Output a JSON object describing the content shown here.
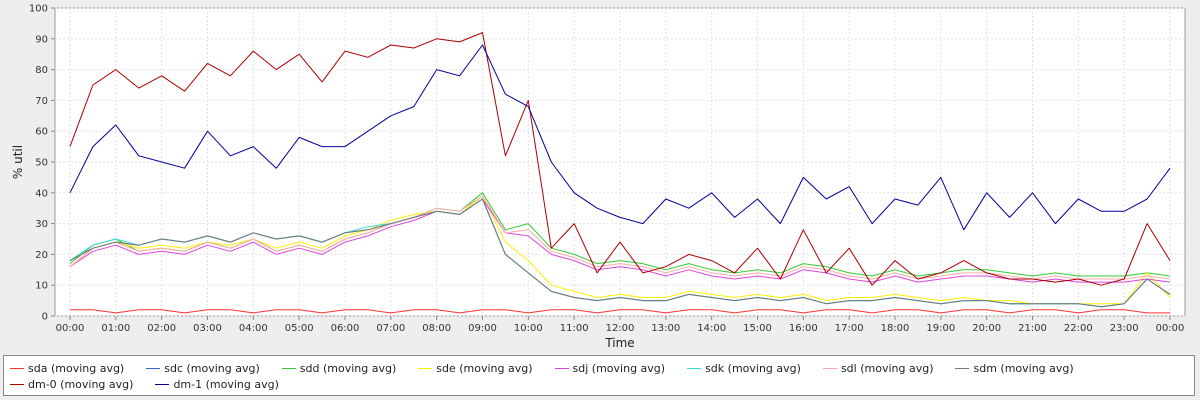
{
  "chart_data": {
    "type": "line",
    "title": "",
    "xlabel": "Time",
    "ylabel": "% util",
    "ylim": [
      0,
      100
    ],
    "yticks": [
      0,
      10,
      20,
      30,
      40,
      50,
      60,
      70,
      80,
      90,
      100
    ],
    "xticks": [
      "00:00",
      "01:00",
      "02:00",
      "03:00",
      "04:00",
      "05:00",
      "06:00",
      "07:00",
      "08:00",
      "09:00",
      "10:00",
      "11:00",
      "12:00",
      "13:00",
      "14:00",
      "15:00",
      "16:00",
      "17:00",
      "18:00",
      "19:00",
      "20:00",
      "21:00",
      "22:00",
      "23:00",
      "00:00"
    ],
    "grid": true,
    "legend_position": "bottom",
    "x_hours": [
      0,
      0.5,
      1,
      1.5,
      2,
      2.5,
      3,
      3.5,
      4,
      4.5,
      5,
      5.5,
      6,
      6.5,
      7,
      7.5,
      8,
      8.5,
      9,
      9.5,
      10,
      10.5,
      11,
      11.5,
      12,
      12.5,
      13,
      13.5,
      14,
      14.5,
      15,
      15.5,
      16,
      16.5,
      17,
      17.5,
      18,
      18.5,
      19,
      19.5,
      20,
      20.5,
      21,
      21.5,
      22,
      22.5,
      23,
      23.5,
      24
    ],
    "series": [
      {
        "name": "sda (moving avg)",
        "color": "#ff3333",
        "values": [
          2,
          2,
          1,
          2,
          2,
          1,
          2,
          2,
          1,
          2,
          2,
          1,
          2,
          2,
          1,
          2,
          2,
          1,
          2,
          2,
          1,
          2,
          2,
          1,
          2,
          2,
          1,
          2,
          2,
          1,
          2,
          2,
          1,
          2,
          2,
          1,
          2,
          2,
          1,
          2,
          2,
          1,
          2,
          2,
          1,
          2,
          2,
          1,
          1
        ]
      },
      {
        "name": "sdc (moving avg)",
        "color": "#3366cc",
        "values": [
          18,
          22,
          24,
          23,
          25,
          24,
          26,
          24,
          27,
          25,
          26,
          24,
          27,
          28,
          30,
          32,
          34,
          33,
          38,
          20,
          14,
          8,
          6,
          5,
          6,
          5,
          5,
          7,
          6,
          5,
          6,
          5,
          6,
          4,
          5,
          5,
          6,
          5,
          4,
          5,
          5,
          4,
          4,
          4,
          4,
          3,
          4,
          12,
          7
        ]
      },
      {
        "name": "sdd (moving avg)",
        "color": "#33cc33",
        "values": [
          17,
          23,
          25,
          21,
          22,
          21,
          24,
          22,
          25,
          21,
          23,
          21,
          25,
          27,
          30,
          32,
          35,
          34,
          40,
          28,
          30,
          22,
          20,
          17,
          18,
          17,
          15,
          17,
          15,
          14,
          15,
          14,
          17,
          16,
          14,
          13,
          15,
          13,
          14,
          15,
          15,
          14,
          13,
          14,
          13,
          13,
          13,
          14,
          13
        ]
      },
      {
        "name": "sde (moving avg)",
        "color": "#ffee00",
        "values": [
          16,
          22,
          24,
          22,
          23,
          22,
          24,
          23,
          25,
          22,
          24,
          22,
          26,
          28,
          31,
          33,
          34,
          33,
          39,
          24,
          18,
          10,
          8,
          6,
          7,
          6,
          6,
          8,
          7,
          6,
          7,
          6,
          7,
          5,
          6,
          6,
          7,
          6,
          5,
          6,
          5,
          5,
          4,
          4,
          4,
          4,
          4,
          14,
          6
        ]
      },
      {
        "name": "sdj (moving avg)",
        "color": "#dd44dd",
        "values": [
          16,
          21,
          23,
          20,
          21,
          20,
          23,
          21,
          24,
          20,
          22,
          20,
          24,
          26,
          29,
          31,
          34,
          33,
          38,
          27,
          26,
          20,
          18,
          15,
          16,
          15,
          13,
          15,
          13,
          12,
          13,
          12,
          15,
          14,
          12,
          11,
          13,
          11,
          12,
          13,
          13,
          12,
          11,
          12,
          11,
          11,
          11,
          12,
          11
        ]
      },
      {
        "name": "sdk (moving avg)",
        "color": "#33dddd",
        "values": [
          18,
          23,
          25,
          23,
          25,
          24,
          26,
          24,
          27,
          25,
          26,
          24,
          27,
          29,
          30,
          32,
          34,
          33,
          38,
          20,
          14,
          8,
          6,
          5,
          6,
          5,
          5,
          7,
          6,
          5,
          6,
          5,
          6,
          4,
          5,
          5,
          6,
          5,
          4,
          5,
          5,
          4,
          4,
          4,
          4,
          3,
          4,
          12,
          7
        ]
      },
      {
        "name": "sdl (moving avg)",
        "color": "#ffaaaa",
        "values": [
          16,
          22,
          24,
          21,
          22,
          21,
          24,
          22,
          25,
          21,
          23,
          21,
          25,
          27,
          30,
          32,
          35,
          34,
          39,
          27,
          28,
          21,
          19,
          16,
          17,
          16,
          14,
          16,
          14,
          13,
          14,
          13,
          16,
          15,
          13,
          12,
          14,
          12,
          13,
          14,
          14,
          13,
          12,
          13,
          12,
          12,
          12,
          13,
          12
        ]
      },
      {
        "name": "sdm (moving avg)",
        "color": "#777777",
        "values": [
          18,
          22,
          24,
          23,
          25,
          24,
          26,
          24,
          27,
          25,
          26,
          24,
          27,
          28,
          30,
          32,
          34,
          33,
          38,
          20,
          14,
          8,
          6,
          5,
          6,
          5,
          5,
          7,
          6,
          5,
          6,
          5,
          6,
          4,
          5,
          5,
          6,
          5,
          4,
          5,
          5,
          4,
          4,
          4,
          4,
          3,
          4,
          12,
          7
        ]
      },
      {
        "name": "dm-0 (moving avg)",
        "color": "#aa0000",
        "values": [
          55,
          75,
          80,
          74,
          78,
          73,
          82,
          78,
          86,
          80,
          85,
          76,
          86,
          84,
          88,
          87,
          90,
          89,
          92,
          52,
          70,
          22,
          30,
          14,
          24,
          14,
          16,
          20,
          18,
          14,
          22,
          12,
          28,
          14,
          22,
          10,
          18,
          12,
          14,
          18,
          14,
          12,
          12,
          11,
          12,
          10,
          12,
          30,
          18
        ]
      },
      {
        "name": "dm-1 (moving avg)",
        "color": "#000099",
        "values": [
          40,
          55,
          62,
          52,
          50,
          48,
          60,
          52,
          55,
          48,
          58,
          55,
          55,
          60,
          65,
          68,
          80,
          78,
          88,
          72,
          68,
          50,
          40,
          35,
          32,
          30,
          38,
          35,
          40,
          32,
          38,
          30,
          45,
          38,
          42,
          30,
          38,
          36,
          45,
          28,
          40,
          32,
          40,
          30,
          38,
          34,
          34,
          38,
          48
        ]
      }
    ]
  }
}
